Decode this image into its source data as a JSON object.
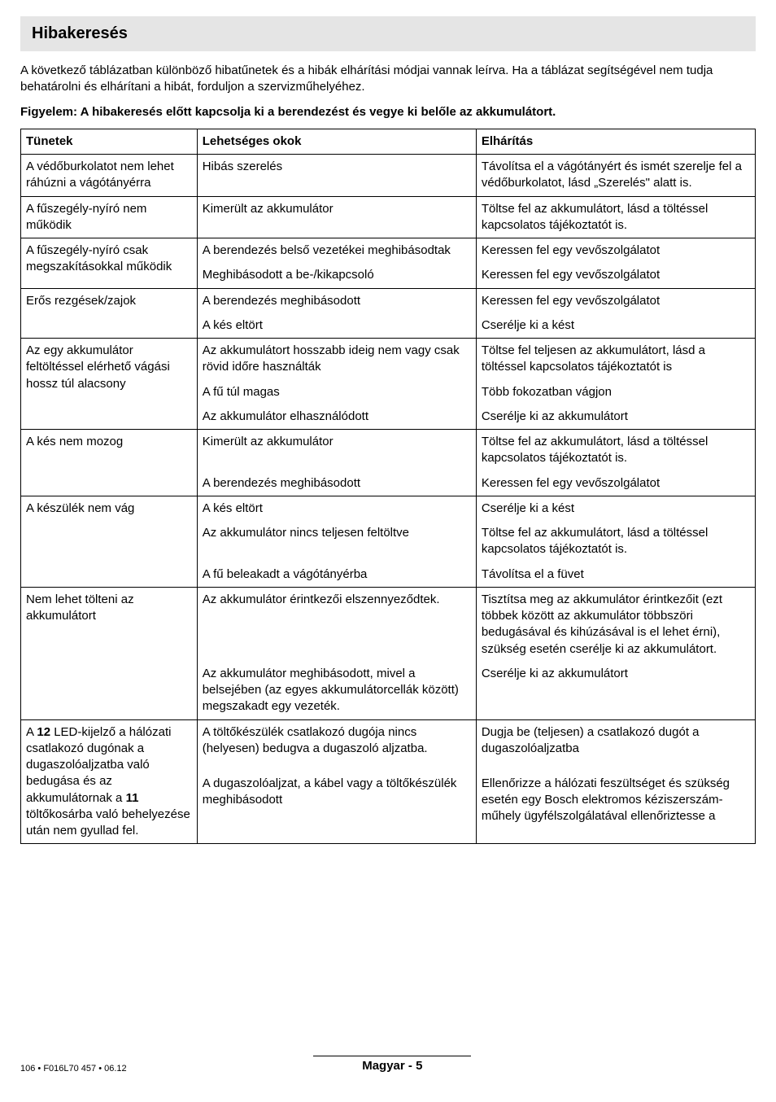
{
  "title": "Hibakeresés",
  "intro": "A következő táblázatban különböző hibatűnetek és a hibák elhárítási módjai vannak leírva. Ha a táblázat segítségével nem tudja behatárolni és elhárítani a hibát, forduljon a szervizműhelyéhez.",
  "warning": "Figyelem: A hibakeresés előtt kapcsolja ki a berendezést és vegye ki belőle az akkumulátort.",
  "headers": {
    "c1": "Tünetek",
    "c2": "Lehetséges okok",
    "c3": "Elhárítás"
  },
  "rows": [
    {
      "c1": "A védőburkolatot nem lehet ráhúzni a vágótányérra",
      "c2": "Hibás szerelés",
      "c3": "Távolítsa el a vágótányért és ismét szerelje fel a védőburkolatot, lásd „Szerelés\" alatt is."
    },
    {
      "c1": "A fűszegély-nyíró nem működik",
      "c2": "Kimerült az akkumulátor",
      "c3": "Töltse fel az akkumulátort, lásd a töltéssel kapcsolatos tájékoztatót is."
    },
    {
      "c1": "A fűszegély-nyíró csak megszakításokkal működik",
      "c2": "A berendezés belső vezetékei meghibásodtak",
      "c3": "Keressen fel egy vevőszolgálatot"
    },
    {
      "c2": "Meghibásodott a be-/kikapcsoló",
      "c3": "Keressen fel egy vevőszolgálatot"
    },
    {
      "c1": "Erős rezgések/zajok",
      "c2": "A berendezés meghibásodott",
      "c3": "Keressen fel egy vevőszolgálatot"
    },
    {
      "c2": "A kés eltört",
      "c3": "Cserélje ki a kést"
    },
    {
      "c1": "Az egy akkumulátor feltöltéssel elérhető vágási hossz túl alacsony",
      "c2": "Az akkumulátort hosszabb ideig nem vagy csak rövid időre használták",
      "c3": "Töltse fel teljesen az akkumulátort, lásd a töltéssel kapcsolatos tájékoztatót is"
    },
    {
      "c2": "A fű túl magas",
      "c3": "Több fokozatban vágjon"
    },
    {
      "c2": "Az akkumulátor elhasználódott",
      "c3": "Cserélje ki az akkumulátort"
    },
    {
      "c1": "A kés nem mozog",
      "c2": "Kimerült az akkumulátor",
      "c3": "Töltse fel az akkumulátort, lásd a töltéssel kapcsolatos tájékoztatót is."
    },
    {
      "c2": "A berendezés meghibásodott",
      "c3": "Keressen fel egy vevőszolgálatot"
    },
    {
      "c1": "A készülék nem vág",
      "c2": "A kés eltört",
      "c3": "Cserélje ki a kést"
    },
    {
      "c2": "Az akkumulátor nincs teljesen feltöltve",
      "c3": "Töltse fel az akkumulátort, lásd a töltéssel kapcsolatos tájékoztatót is."
    },
    {
      "c2": "A fű beleakadt a vágótányérba",
      "c3": "Távolítsa el a füvet"
    },
    {
      "c1": "Nem lehet tölteni az akkumulátort",
      "c2": "Az akkumulátor érintkezői elszennyeződtek.",
      "c3": "Tisztítsa meg az akkumulátor érintkezőit (ezt többek között az akkumulátor többszöri bedugásával és kihúzásával is el lehet érni), szükség esetén cserélje ki az akkumulátort."
    },
    {
      "c2": "Az akkumulátor meghibásodott, mivel a belsejében (az egyes akkumulátorcellák között) megszakadt egy vezeték.",
      "c3": "Cserélje ki az akkumulátort"
    },
    {
      "c1a": "A ",
      "c1b": "12",
      "c1c": " LED-kijelző a hálózati csatlakozó dugónak a dugaszolóaljzatba való bedugása és az akkumulátornak a ",
      "c1d": "11",
      "c1e": " töltőkosárba való behelyezése után nem gyullad fel.",
      "c2": "A töltőkészülék csatlakozó dugója nincs (helyesen) bedugva a dugaszoló aljzatba.",
      "c3": "Dugja be (teljesen) a csatlakozó dugót a dugaszolóaljzatba"
    },
    {
      "c2": "A dugaszolóaljzat, a kábel vagy a töltőkészülék meghibásodott",
      "c3": "Ellenőrizze a hálózati feszültséget és szükség esetén egy Bosch elektromos kéziszerszám-műhely ügyfélszolgálatával ellenőriztesse a"
    }
  ],
  "footer": {
    "left": "106 • F016L70 457 • 06.12",
    "center": "Magyar - 5"
  }
}
